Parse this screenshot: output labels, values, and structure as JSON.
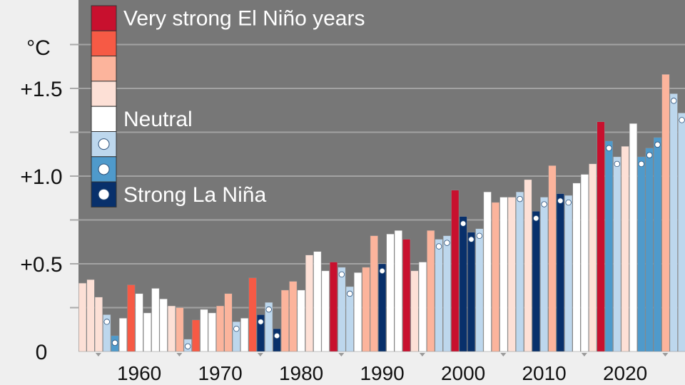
{
  "chart_data": {
    "type": "bar",
    "unit_label": "°C",
    "ylim": [
      0,
      1.8
    ],
    "xlim": [
      1952.5,
      2025.7
    ],
    "y_ticks": [
      {
        "value": 0,
        "label": "0"
      },
      {
        "value": 0.5,
        "label": "+0.5"
      },
      {
        "value": 1.0,
        "label": "+1.0"
      },
      {
        "value": 1.5,
        "label": "+1.5"
      }
    ],
    "minor_y_ticks": [
      0.25,
      0.75,
      1.25,
      1.75
    ],
    "x_ticks": [
      {
        "value": 1960,
        "label": "1960"
      },
      {
        "value": 1970,
        "label": "1970"
      },
      {
        "value": 1980,
        "label": "1980"
      },
      {
        "value": 1990,
        "label": "1990"
      },
      {
        "value": 2000,
        "label": "2000"
      },
      {
        "value": 2010,
        "label": "2010"
      },
      {
        "value": 2020,
        "label": "2020"
      }
    ],
    "minor_x_ticks": [
      1955,
      1965,
      1975,
      1985,
      1995,
      2005,
      2015,
      2025
    ],
    "grid": true,
    "legend": {
      "position": "top-left",
      "items": [
        {
          "category": "el_nino_very_strong",
          "color": "#c8102e",
          "label": "Very strong El Niño years",
          "dot": false
        },
        {
          "category": "el_nino_strong",
          "color": "#f65a45",
          "label": "",
          "dot": false
        },
        {
          "category": "el_nino_moderate",
          "color": "#fcb49c",
          "label": "",
          "dot": false
        },
        {
          "category": "el_nino_weak",
          "color": "#fde0d6",
          "label": "",
          "dot": false
        },
        {
          "category": "neutral",
          "color": "#ffffff",
          "label": "Neutral",
          "dot": false
        },
        {
          "category": "la_nina_weak",
          "color": "#bdd7ed",
          "label": "",
          "dot": true
        },
        {
          "category": "la_nina_moderate",
          "color": "#4f9acb",
          "label": "",
          "dot": true
        },
        {
          "category": "la_nina_strong",
          "color": "#08306b",
          "label": "Strong La Niña",
          "dot": true
        }
      ]
    },
    "colors": {
      "el_nino_very_strong": "#c8102e",
      "el_nino_strong": "#f65a45",
      "el_nino_moderate": "#fcb49c",
      "el_nino_weak": "#fde0d6",
      "neutral": "#ffffff",
      "la_nina_weak": "#bdd7ed",
      "la_nina_moderate": "#4f9acb",
      "la_nina_strong": "#08306b",
      "plot_background": "#777777",
      "page_background": "#efefef"
    },
    "bars": [
      {
        "x": 1953,
        "value": 0.39,
        "category": "el_nino_weak"
      },
      {
        "x": 1954,
        "value": 0.41,
        "category": "el_nino_weak"
      },
      {
        "x": 1955,
        "value": 0.31,
        "category": "el_nino_weak"
      },
      {
        "x": 1956,
        "value": 0.21,
        "category": "la_nina_weak"
      },
      {
        "x": 1957,
        "value": 0.09,
        "category": "la_nina_moderate"
      },
      {
        "x": 1958,
        "value": 0.19,
        "category": "neutral"
      },
      {
        "x": 1959,
        "value": 0.38,
        "category": "el_nino_strong"
      },
      {
        "x": 1960,
        "value": 0.33,
        "category": "neutral"
      },
      {
        "x": 1961,
        "value": 0.22,
        "category": "neutral"
      },
      {
        "x": 1962,
        "value": 0.36,
        "category": "neutral"
      },
      {
        "x": 1963,
        "value": 0.3,
        "category": "neutral"
      },
      {
        "x": 1964,
        "value": 0.26,
        "category": "el_nino_weak"
      },
      {
        "x": 1965,
        "value": 0.25,
        "category": "el_nino_moderate"
      },
      {
        "x": 1966,
        "value": 0.07,
        "category": "la_nina_weak"
      },
      {
        "x": 1967,
        "value": 0.18,
        "category": "el_nino_strong"
      },
      {
        "x": 1968,
        "value": 0.24,
        "category": "neutral"
      },
      {
        "x": 1969,
        "value": 0.22,
        "category": "neutral"
      },
      {
        "x": 1970,
        "value": 0.26,
        "category": "el_nino_moderate"
      },
      {
        "x": 1971,
        "value": 0.33,
        "category": "el_nino_moderate"
      },
      {
        "x": 1972,
        "value": 0.17,
        "category": "la_nina_weak"
      },
      {
        "x": 1973,
        "value": 0.19,
        "category": "neutral"
      },
      {
        "x": 1974,
        "value": 0.42,
        "category": "el_nino_strong"
      },
      {
        "x": 1975,
        "value": 0.21,
        "category": "la_nina_strong"
      },
      {
        "x": 1976,
        "value": 0.28,
        "category": "la_nina_weak"
      },
      {
        "x": 1977,
        "value": 0.13,
        "category": "la_nina_strong"
      },
      {
        "x": 1978,
        "value": 0.35,
        "category": "el_nino_moderate"
      },
      {
        "x": 1979,
        "value": 0.4,
        "category": "el_nino_moderate"
      },
      {
        "x": 1980,
        "value": 0.35,
        "category": "neutral"
      },
      {
        "x": 1981,
        "value": 0.55,
        "category": "el_nino_weak"
      },
      {
        "x": 1982,
        "value": 0.57,
        "category": "neutral"
      },
      {
        "x": 1983,
        "value": 0.46,
        "category": "neutral"
      },
      {
        "x": 1984,
        "value": 0.51,
        "category": "el_nino_very_strong"
      },
      {
        "x": 1985,
        "value": 0.48,
        "category": "la_nina_weak"
      },
      {
        "x": 1986,
        "value": 0.37,
        "category": "la_nina_weak"
      },
      {
        "x": 1987,
        "value": 0.45,
        "category": "neutral"
      },
      {
        "x": 1988,
        "value": 0.48,
        "category": "el_nino_moderate"
      },
      {
        "x": 1989,
        "value": 0.66,
        "category": "el_nino_moderate"
      },
      {
        "x": 1990,
        "value": 0.5,
        "category": "la_nina_strong"
      },
      {
        "x": 1991,
        "value": 0.67,
        "category": "neutral"
      },
      {
        "x": 1992,
        "value": 0.69,
        "category": "neutral"
      },
      {
        "x": 1993,
        "value": 0.64,
        "category": "el_nino_very_strong"
      },
      {
        "x": 1994,
        "value": 0.46,
        "category": "el_nino_weak"
      },
      {
        "x": 1995,
        "value": 0.51,
        "category": "neutral"
      },
      {
        "x": 1996,
        "value": 0.69,
        "category": "el_nino_moderate"
      },
      {
        "x": 1997,
        "value": 0.64,
        "category": "la_nina_weak"
      },
      {
        "x": 1998,
        "value": 0.66,
        "category": "la_nina_weak"
      },
      {
        "x": 1999,
        "value": 0.92,
        "category": "el_nino_very_strong"
      },
      {
        "x": 2000,
        "value": 0.77,
        "category": "la_nina_strong"
      },
      {
        "x": 2001,
        "value": 0.68,
        "category": "la_nina_strong"
      },
      {
        "x": 2002,
        "value": 0.7,
        "category": "la_nina_weak"
      },
      {
        "x": 2003,
        "value": 0.91,
        "category": "neutral"
      },
      {
        "x": 2004,
        "value": 0.85,
        "category": "el_nino_moderate"
      },
      {
        "x": 2005,
        "value": 0.88,
        "category": "neutral"
      },
      {
        "x": 2006,
        "value": 0.88,
        "category": "el_nino_weak"
      },
      {
        "x": 2007,
        "value": 0.91,
        "category": "la_nina_weak"
      },
      {
        "x": 2008,
        "value": 0.98,
        "category": "el_nino_weak"
      },
      {
        "x": 2009,
        "value": 0.8,
        "category": "la_nina_strong"
      },
      {
        "x": 2010,
        "value": 0.88,
        "category": "la_nina_weak"
      },
      {
        "x": 2011,
        "value": 1.06,
        "category": "el_nino_moderate"
      },
      {
        "x": 2012,
        "value": 0.9,
        "category": "la_nina_strong"
      },
      {
        "x": 2013,
        "value": 0.89,
        "category": "la_nina_weak"
      },
      {
        "x": 2014,
        "value": 0.96,
        "category": "neutral"
      },
      {
        "x": 2015,
        "value": 1.01,
        "category": "neutral"
      },
      {
        "x": 2016,
        "value": 1.07,
        "category": "el_nino_weak"
      },
      {
        "x": 2017,
        "value": 1.31,
        "category": "el_nino_very_strong"
      },
      {
        "x": 2018,
        "value": 1.2,
        "category": "la_nina_moderate"
      },
      {
        "x": 2019,
        "value": 1.11,
        "category": "la_nina_weak"
      },
      {
        "x": 2020,
        "value": 1.17,
        "category": "el_nino_weak"
      },
      {
        "x": 2021,
        "value": 1.3,
        "category": "neutral"
      },
      {
        "x": 2022,
        "value": 1.11,
        "category": "la_nina_moderate"
      },
      {
        "x": 2023,
        "value": 1.16,
        "category": "la_nina_moderate"
      },
      {
        "x": 2024,
        "value": 1.22,
        "category": "la_nina_moderate"
      },
      {
        "x": 2025,
        "value": 1.58,
        "category": "el_nino_moderate"
      },
      {
        "x": 2026,
        "value": 1.47,
        "category": "la_nina_weak"
      },
      {
        "x": 2027,
        "value": 1.36,
        "category": "la_nina_weak"
      }
    ]
  }
}
